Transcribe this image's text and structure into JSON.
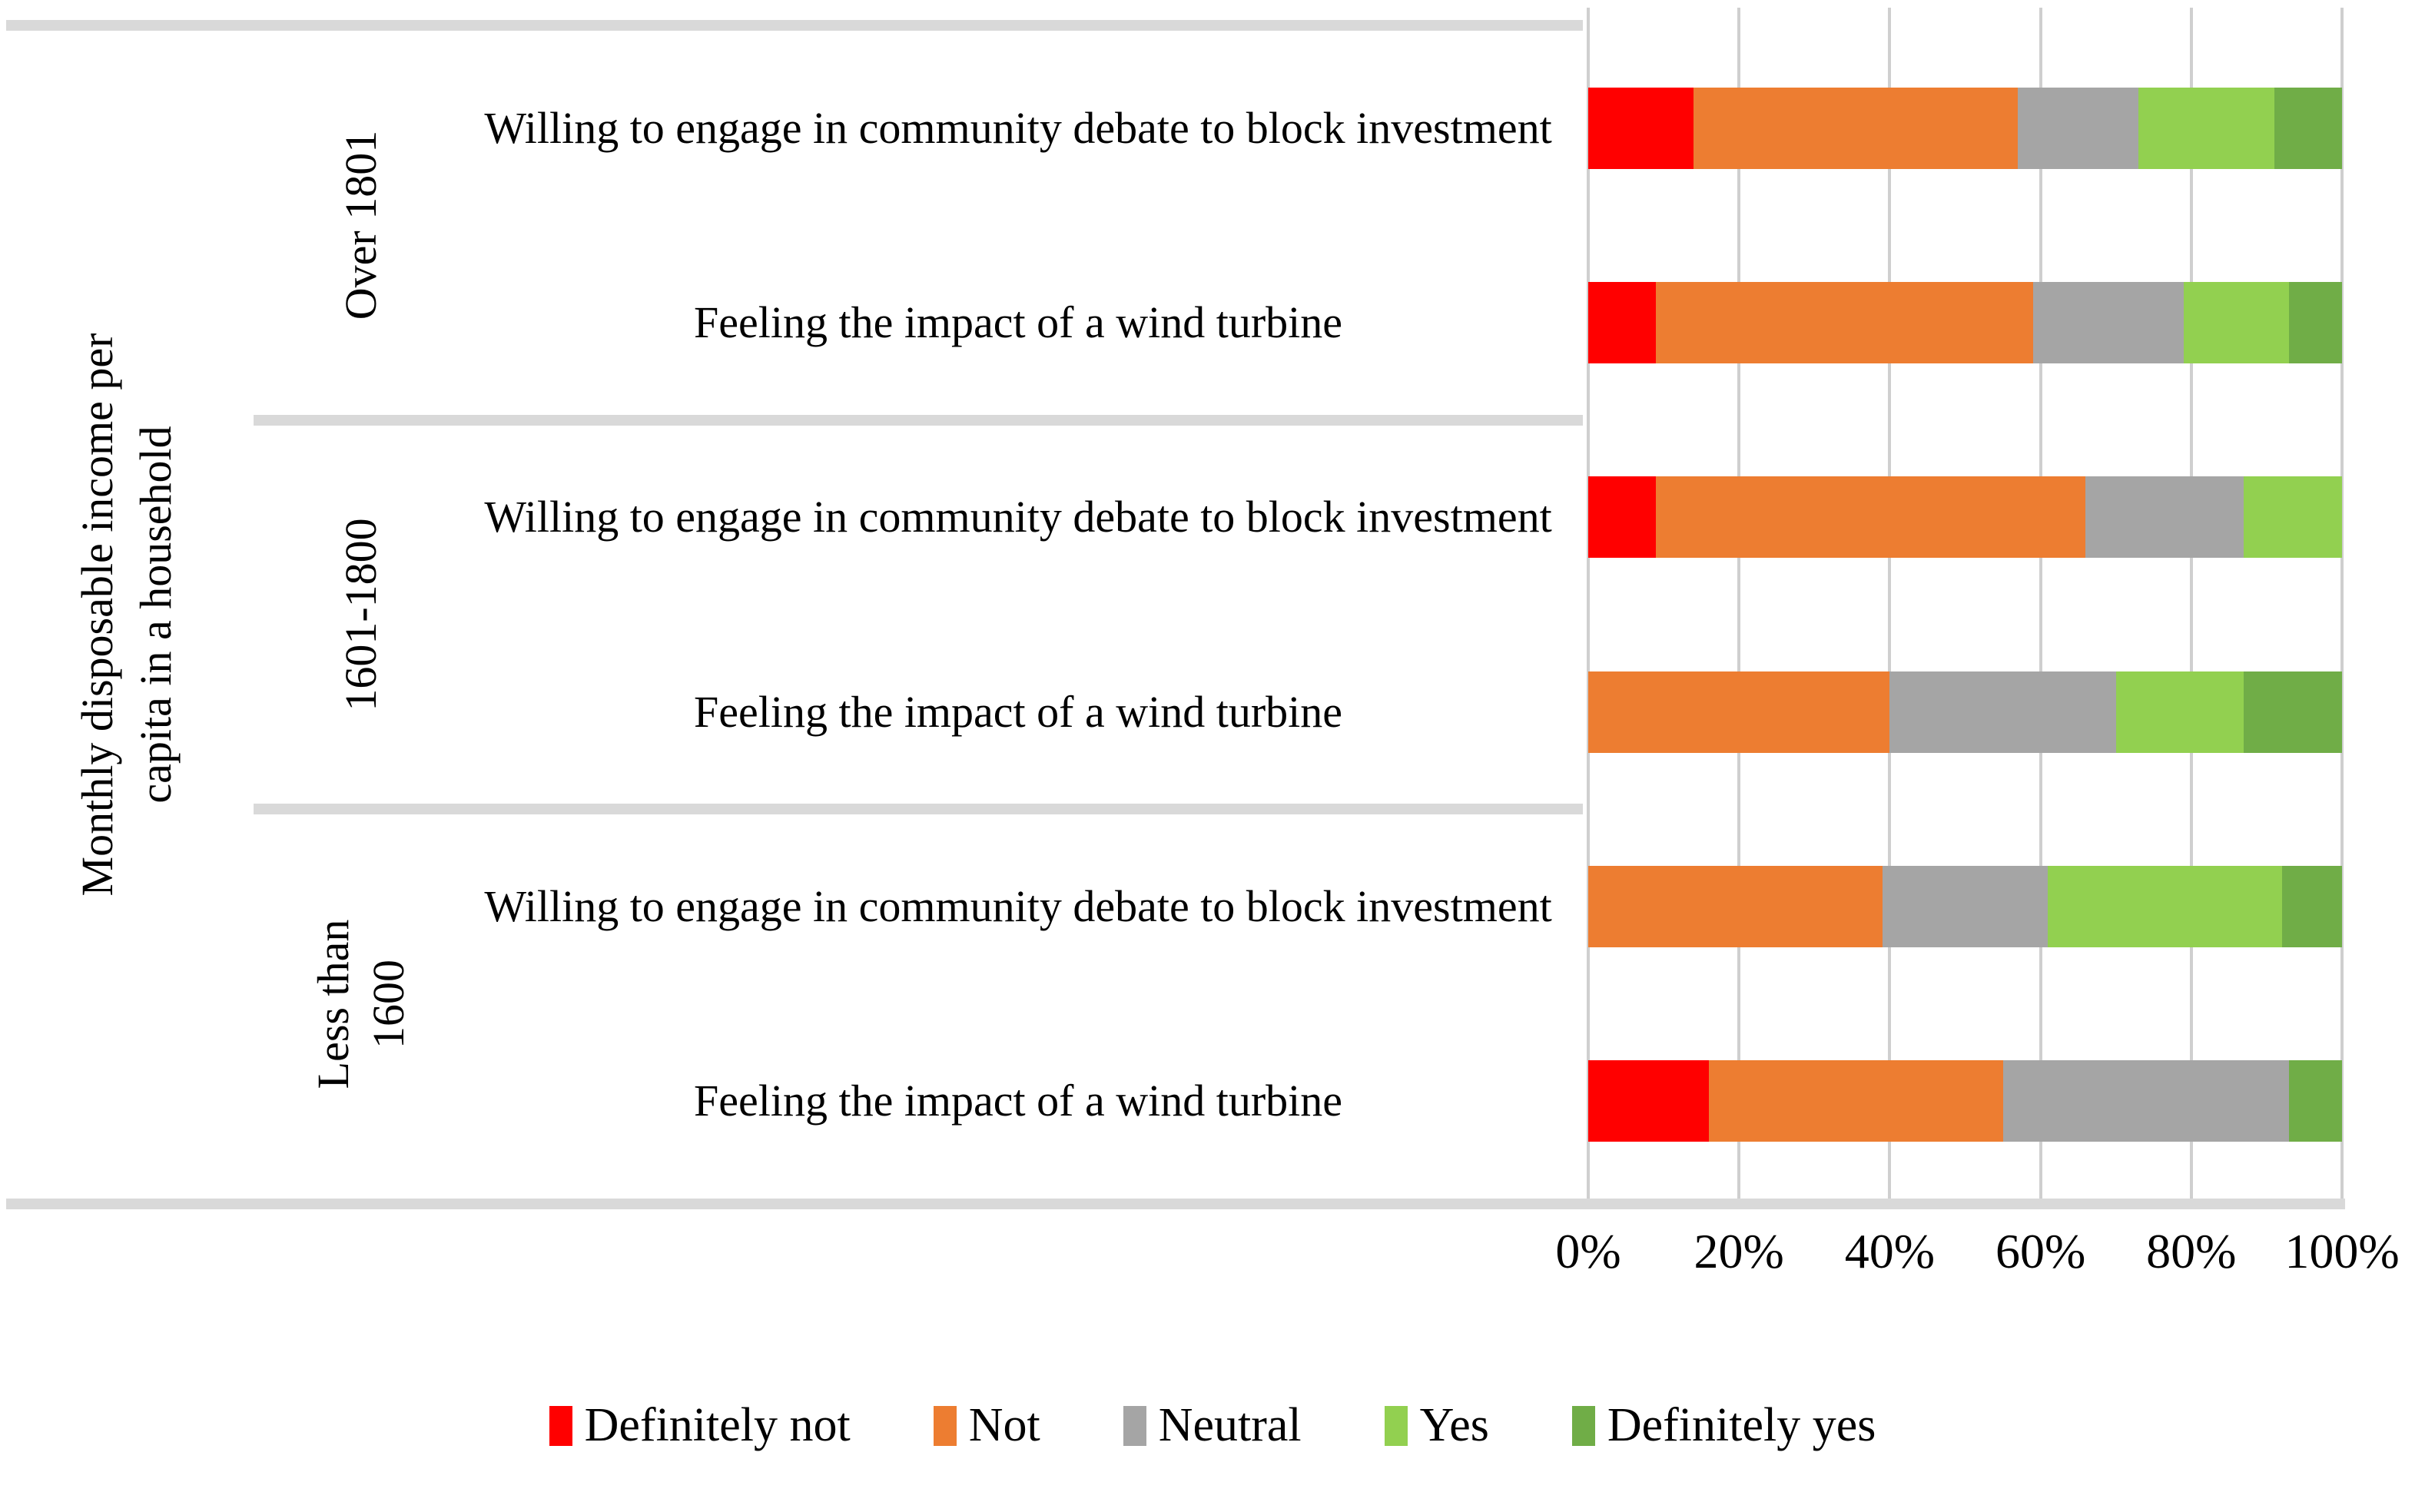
{
  "chart_data": {
    "type": "bar",
    "orientation": "horizontal",
    "stacked": true,
    "unit": "percent",
    "xlim": [
      0,
      100
    ],
    "grid": "vertical",
    "x_ticks": [
      "0%",
      "20%",
      "40%",
      "60%",
      "80%",
      "100%"
    ],
    "group_axis_title": "Monthly disposable income per capita in a household",
    "group_axis_title_lines": [
      "Monthly disposable income per",
      "capita in a household"
    ],
    "legend_position": "bottom",
    "legend": [
      {
        "label": "Definitely not",
        "color": "#ff0000"
      },
      {
        "label": "Not",
        "color": "#ed7d31"
      },
      {
        "label": "Neutral",
        "color": "#a5a5a5"
      },
      {
        "label": "Yes",
        "color": "#92d050"
      },
      {
        "label": "Definitely yes",
        "color": "#70ad47"
      }
    ],
    "groups": [
      {
        "label": "Over 1801",
        "label_lines": [
          "Over 1801"
        ],
        "rows": [
          {
            "label": "Willing to engage in community debate to block investment",
            "values": [
              14,
              43,
              16,
              18,
              9
            ]
          },
          {
            "label": "Feeling the impact of a wind turbine",
            "values": [
              9,
              50,
              20,
              14,
              7
            ]
          }
        ]
      },
      {
        "label": "1601-1800",
        "label_lines": [
          "1601-1800"
        ],
        "rows": [
          {
            "label": "Willing to engage in community debate to block investment",
            "values": [
              9,
              57,
              21,
              13,
              0
            ]
          },
          {
            "label": "Feeling the impact of a wind turbine",
            "values": [
              0,
              40,
              30,
              17,
              13
            ]
          }
        ]
      },
      {
        "label": "Less than 1600",
        "label_lines": [
          "Less than",
          "1600"
        ],
        "rows": [
          {
            "label": "Willing to engage in community debate to block investment",
            "values": [
              0,
              39,
              22,
              31,
              8
            ]
          },
          {
            "label": "Feeling the impact of a wind turbine",
            "values": [
              16,
              39,
              38,
              0,
              7
            ]
          }
        ]
      }
    ],
    "colors": {
      "bar_red": "#ff0000",
      "bar_orange": "#ed7d31",
      "bar_gray": "#a5a5a5",
      "bar_light_green": "#92d050",
      "bar_dark_green": "#70ad47",
      "gridline": "#cfcfcf",
      "table_border": "#d9d9d9"
    }
  }
}
